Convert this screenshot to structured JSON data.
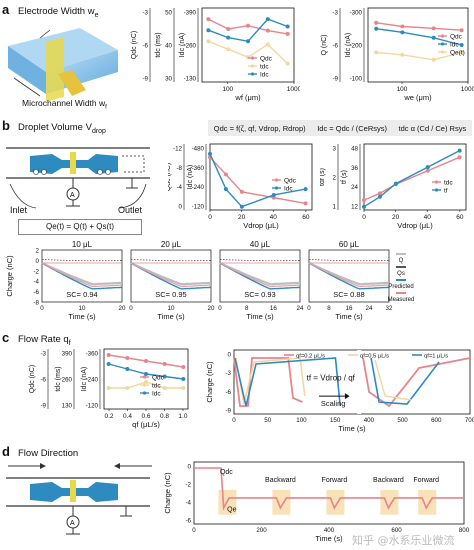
{
  "panels": {
    "a": {
      "label": "a",
      "title": "Electrode Width w",
      "title_sub": "e",
      "illus_label": "Microchannel Width w",
      "illus_label_sub": "f"
    },
    "b": {
      "label": "b",
      "title": "Droplet Volume V",
      "title_sub": "drop",
      "eq1": "Q",
      "inlet": "Inlet",
      "outlet": "Outlet",
      "sum_eq": "Qe(t) = Q(t) + Qs(t)"
    },
    "c": {
      "label": "c",
      "title": "Flow Rate q",
      "title_sub": "f",
      "scale_eq": "t",
      "scaling": "Scaling"
    },
    "d": {
      "label": "d",
      "title": "Flow Direction"
    }
  },
  "formulas": {
    "f1": "Qdc = f(ζ, qf, Vdrop, Rdrop)",
    "f2": "Idc = Qdc / (CeRsys)",
    "f3": "tdc α (Cd / Ce) Rsys"
  },
  "legend": {
    "qdc": "Qdc",
    "tdc": "tdc",
    "idc": "Idc",
    "qe": "Qe(t)",
    "tf": "tf",
    "q_series": "Q",
    "qs_series": "Qs",
    "predicted": "Predicted",
    "measured": "Measured",
    "flow1": "qf=0.2 μL/s",
    "flow2": "qf=0.5 μL/s",
    "flow3": "qf=1 μL/s",
    "qdc_label": "Qdc",
    "qe_label": "Qe",
    "backward": "Backward",
    "forward": "Forward"
  },
  "watermark": "知乎 @水系乐业微流",
  "chart_data": [
    {
      "id": "a1",
      "type": "line",
      "xlabel": "wf (μm)",
      "ylabel_left": "Qdc (nC)",
      "ylabel_mid": "tdc (ms)",
      "ylabel_right": "Idc (nA)",
      "x_scale": "log",
      "x": [
        50,
        100,
        200,
        400,
        800
      ],
      "x_ticks": [
        "100",
        "1000"
      ],
      "axis1_ticks": [
        "-3",
        "-6",
        "-9"
      ],
      "axis2_ticks": [
        "50",
        "40",
        "30"
      ],
      "axis3_ticks": [
        "-390",
        "-260",
        "-130"
      ],
      "series": [
        {
          "name": "Qdc",
          "color": "#e8848c",
          "values": [
            -3.6,
            -4.2,
            -4.0,
            -4.3,
            -4.5
          ]
        },
        {
          "name": "tdc",
          "color": "#f2d7a0",
          "values": [
            -2.0,
            -2.5,
            -3.0,
            -2.2,
            -3.4
          ]
        },
        {
          "name": "Idc",
          "color": "#2e8bc0",
          "values": [
            -330,
            -350,
            -360,
            -300,
            -320
          ]
        }
      ]
    },
    {
      "id": "a2",
      "type": "line",
      "xlabel": "we (μm)",
      "ylabel_left": "Q (nC)",
      "ylabel_right": "Idc (nA)",
      "x_scale": "log",
      "x": [
        40,
        100,
        300,
        800
      ],
      "x_ticks": [
        "100",
        "1000"
      ],
      "axis1_ticks": [
        "-3",
        "-6",
        "-9"
      ],
      "axis3_ticks": [
        "-300",
        "-200",
        "-100"
      ],
      "series": [
        {
          "name": "Qdc",
          "color": "#e8848c",
          "values": [
            -6.5,
            -6.7,
            -6.8,
            -6.9
          ]
        },
        {
          "name": "Idc",
          "color": "#2e8bc0",
          "values": [
            -215,
            -225,
            -240,
            -260
          ]
        },
        {
          "name": "Qe(t)",
          "color": "#f2d7a0",
          "values": [
            -3.5,
            -3.6,
            -3.8,
            -3.5
          ]
        }
      ]
    },
    {
      "id": "b1",
      "type": "line",
      "xlabel": "Vdrop (μL)",
      "ylabel_left": "Qdc (nC)",
      "ylabel_right": "Idc (nA)",
      "x": [
        0,
        10,
        20,
        40,
        60
      ],
      "x_ticks": [
        "0",
        "20",
        "40",
        "60"
      ],
      "axis1_ticks": [
        "-12",
        "-8",
        "-4",
        "0"
      ],
      "axis3_ticks": [
        "-480",
        "-360",
        "-240",
        "-120"
      ],
      "series": [
        {
          "name": "Qdc",
          "color": "#e8848c",
          "values": [
            -2,
            -5,
            -8,
            -9,
            -10
          ]
        },
        {
          "name": "Idc",
          "color": "#2e8bc0",
          "values": [
            -150,
            -330,
            -420,
            -360,
            -330
          ]
        }
      ]
    },
    {
      "id": "b2",
      "type": "line",
      "xlabel": "Vdrop (μL)",
      "ylabel_left": "tdf (s)",
      "ylabel_right": "tf (s)",
      "x": [
        0,
        10,
        20,
        40,
        60
      ],
      "x_ticks": [
        "0",
        "20",
        "40",
        "60"
      ],
      "axis1_ticks": [
        "3",
        "2",
        "1"
      ],
      "axis3_ticks": [
        "48",
        "36",
        "24",
        "12"
      ],
      "series": [
        {
          "name": "tdc",
          "color": "#e8848c",
          "values": [
            0.9,
            1.2,
            1.6,
            2.2,
            2.8
          ]
        },
        {
          "name": "tf",
          "color": "#2e8bc0",
          "values": [
            8,
            14,
            22,
            32,
            42
          ]
        }
      ]
    },
    {
      "id": "b3",
      "type": "line",
      "panels": [
        {
          "label": "10 μL",
          "sc": "SC= 0.94",
          "xmax": 10,
          "x_ticks": [
            "0",
            "10",
            "20"
          ]
        },
        {
          "label": "20 μL",
          "sc": "SC= 0.95",
          "xmax": 20,
          "x_ticks": [
            "0",
            "10",
            "20"
          ]
        },
        {
          "label": "40 μL",
          "sc": "SC= 0.93",
          "xmax": 24,
          "x_ticks": [
            "0",
            "8",
            "16",
            "24"
          ]
        },
        {
          "label": "60 μL",
          "sc": "SC= 0.88",
          "xmax": 32,
          "x_ticks": [
            "0",
            "8",
            "16",
            "24",
            "32"
          ]
        }
      ],
      "xlabel": "Time (s)",
      "ylabel": "Charge (nC)",
      "y_ticks": [
        "2",
        "0",
        "-2",
        "-4",
        "-6",
        "-8"
      ]
    },
    {
      "id": "c1",
      "type": "line",
      "xlabel": "qf (μL/s)",
      "ylabel_left": "Qdc (nC)",
      "ylabel_mid": "tdc (ms)",
      "ylabel_right": "Idc (nA)",
      "x": [
        0.2,
        0.4,
        0.6,
        0.8,
        1.0
      ],
      "x_ticks": [
        "0.2",
        "0.4",
        "0.6",
        "0.8",
        "1.0"
      ],
      "axis1_ticks": [
        "-3",
        "-6",
        "-9"
      ],
      "axis2_ticks": [
        "390",
        "260",
        "130"
      ],
      "axis3_ticks": [
        "-360",
        "-240",
        "-120"
      ],
      "series": [
        {
          "name": "Qdc",
          "color": "#e8848c",
          "values": [
            -6.2,
            -6.4,
            -6.6,
            -6.8,
            -7.0
          ]
        },
        {
          "name": "tdc",
          "color": "#f2d7a0",
          "values": [
            -3.5,
            -3.5,
            -3.4,
            -3.5,
            -3.5
          ]
        },
        {
          "name": "Idc",
          "color": "#2e8bc0",
          "values": [
            -200,
            -220,
            -240,
            -250,
            -260
          ]
        }
      ]
    },
    {
      "id": "c2",
      "type": "line",
      "xlabel": "Time (s)",
      "ylabel": "Charge (nC)",
      "x_ticks": [
        "0",
        "50",
        "100",
        "150",
        "400",
        "500",
        "600",
        "700"
      ],
      "y_ticks": [
        "0",
        "-3",
        "-6",
        "-9"
      ]
    },
    {
      "id": "d1",
      "type": "line",
      "xlabel": "Time (s)",
      "ylabel": "Charge (nC)",
      "x_ticks": [
        "0",
        "200",
        "400",
        "600",
        "800"
      ],
      "y_ticks": [
        "0",
        "-2",
        "-4",
        "-6"
      ]
    }
  ]
}
